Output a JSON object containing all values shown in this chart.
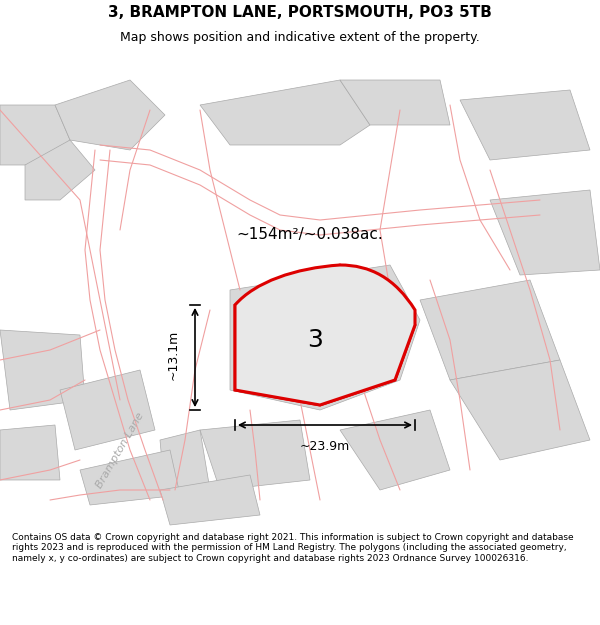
{
  "title_line1": "3, BRAMPTON LANE, PORTSMOUTH, PO3 5TB",
  "title_line2": "Map shows position and indicative extent of the property.",
  "footer_text": "Contains OS data © Crown copyright and database right 2021. This information is subject to Crown copyright and database rights 2023 and is reproduced with the permission of HM Land Registry. The polygons (including the associated geometry, namely x, y co-ordinates) are subject to Crown copyright and database rights 2023 Ordnance Survey 100026316.",
  "area_label": "~154m²/~0.038ac.",
  "plot_number": "3",
  "dim_width": "~23.9m",
  "dim_height": "~13.1m",
  "road_label": "Brampton Lane",
  "map_bg": "#f5f5f5",
  "title_bg": "#ffffff",
  "footer_bg": "#ffffff",
  "building_fill": "#d8d8d8",
  "building_edge": "#aaaaaa",
  "road_pink": "#f0a0a0",
  "highlight_red": "#dd0000",
  "highlight_fill": "#e8e8e8"
}
